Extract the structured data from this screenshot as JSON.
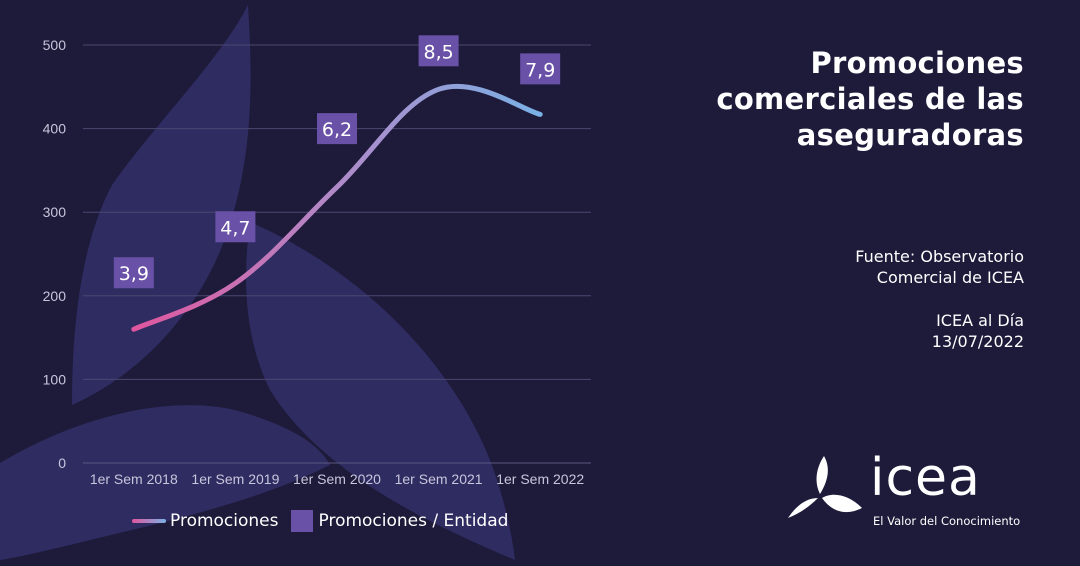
{
  "title_lines": [
    "Promociones",
    "comerciales de las",
    "aseguradoras"
  ],
  "source_lines": [
    "Fuente: Observatorio",
    "Comercial de ICEA"
  ],
  "date_lines": [
    "ICEA al Día",
    "13/07/2022"
  ],
  "logo": {
    "wordmark": "icea",
    "tagline": "El Valor del Conocimiento"
  },
  "colors": {
    "background": "#1d1a3a",
    "decor_shapes": "#2f2c62",
    "label_box": "#6a51a8",
    "line_start": "#e0569e",
    "line_mid": "#a597cf",
    "line_end": "#79b1e6"
  },
  "chart_data": {
    "type": "line",
    "categories": [
      "1er Sem 2018",
      "1er Sem 2019",
      "1er Sem 2020",
      "1er Sem 2021",
      "1er Sem 2022"
    ],
    "ylim": [
      0,
      500
    ],
    "yticks": [
      0,
      100,
      200,
      300,
      400,
      500
    ],
    "grid": true,
    "legend_position": "bottom-left",
    "series": [
      {
        "name": "Promociones",
        "values": [
          160,
          215,
          330,
          447,
          417
        ]
      },
      {
        "name": "Promociones / Entidad",
        "labels": [
          "3,9",
          "4,7",
          "6,2",
          "8,5",
          "7,9"
        ]
      }
    ]
  }
}
